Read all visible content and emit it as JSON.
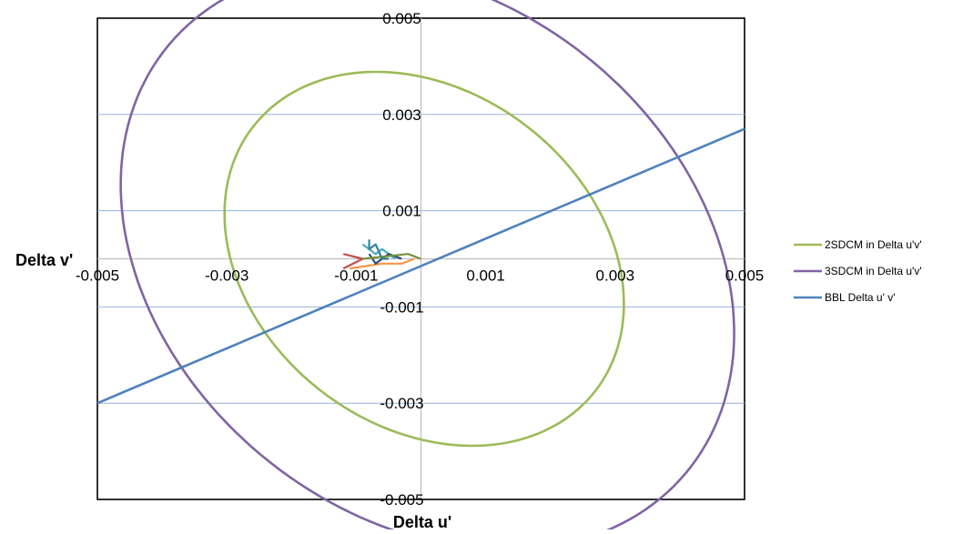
{
  "chart_data": {
    "type": "scatter",
    "xlabel": "Delta u'",
    "ylabel": "Delta v'",
    "xlim": [
      -0.005,
      0.005
    ],
    "ylim": [
      -0.005,
      0.005
    ],
    "x_ticks": [
      -0.005,
      -0.003,
      -0.001,
      0.001,
      0.003,
      0.005
    ],
    "x_tick_labels": [
      "-0.005",
      "-0.003",
      "-0.001",
      "0.001",
      "0.003",
      "0.005"
    ],
    "y_ticks": [
      0.005,
      0.003,
      0.001,
      -0.001,
      -0.003,
      -0.005
    ],
    "y_tick_labels": [
      "0.005",
      "0.003",
      "0.001",
      "-0.001",
      "-0.003",
      "-0.005"
    ],
    "grid": "horizontal at 0.003, 0.001, -0.001, -0.003; vertical at 0",
    "legend_position": "right",
    "series": [
      {
        "name": "2SDCM in Delta u'v'",
        "color": "#9bbb59",
        "shape": "ellipse",
        "center": [
          5e-05,
          0.0
        ],
        "semi_axes": [
          0.00404,
          0.00288
        ],
        "rotation_deg": 113
      },
      {
        "name": "3SDCM in Delta u'v'",
        "color": "#8064a2",
        "shape": "ellipse",
        "center": [
          0.0001,
          0.0
        ],
        "semi_axes": [
          0.0063,
          0.0044
        ],
        "rotation_deg": 113
      },
      {
        "name": "BBL Delta u' v'",
        "color": "#4f81bd",
        "shape": "line",
        "x": [
          -0.005,
          0.005
        ],
        "y": [
          -0.003,
          0.0027
        ]
      }
    ],
    "cluster_lines": [
      {
        "color": "#c0504d",
        "x": [
          -0.0012,
          -0.0009,
          -0.0012
        ],
        "y": [
          -0.0002,
          0.0,
          0.0001
        ]
      },
      {
        "color": "#f79646",
        "x": [
          -0.0011,
          -0.0006,
          -0.0003,
          -0.0001
        ],
        "y": [
          -0.0002,
          -0.0001,
          -0.0001,
          0.0
        ]
      },
      {
        "color": "#4bacc6",
        "x": [
          -0.0009,
          -0.0007,
          -0.0006,
          -0.0004
        ],
        "y": [
          0.0003,
          0.0001,
          0.0002,
          0.0
        ]
      },
      {
        "color": "#2c4d75",
        "x": [
          -0.0008,
          -0.0007,
          -0.0005,
          -0.0003
        ],
        "y": [
          0.0001,
          -0.0001,
          0.0001,
          0.0
        ]
      },
      {
        "color": "#77933c",
        "x": [
          -0.0009,
          -0.0002,
          0.0
        ],
        "y": [
          0.0,
          0.0001,
          0.0
        ]
      },
      {
        "color": "#31859c",
        "x": [
          -0.0008,
          -0.0008,
          -0.0007,
          -0.0006,
          -0.0005
        ],
        "y": [
          0.0004,
          0.0002,
          0.0003,
          0.0,
          0.0
        ]
      }
    ]
  }
}
